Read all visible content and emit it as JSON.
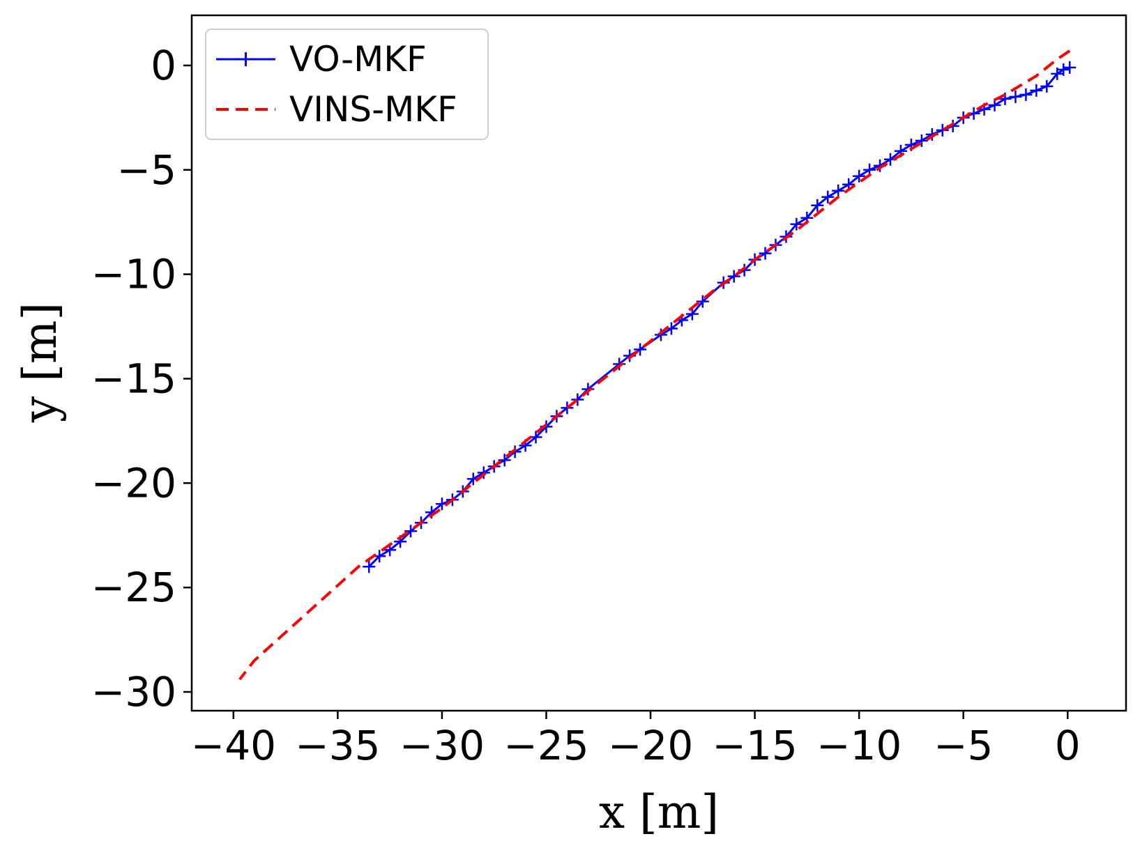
{
  "chart_data": {
    "type": "line",
    "title": "",
    "xlabel": "x [m]",
    "ylabel": "y [m]",
    "xlim": [
      -42,
      2.8
    ],
    "ylim": [
      -30.9,
      2.4
    ],
    "xticks": [
      -40,
      -35,
      -30,
      -25,
      -20,
      -15,
      -10,
      -5,
      0
    ],
    "yticks": [
      0,
      -5,
      -10,
      -15,
      -20,
      -25,
      -30
    ],
    "xtick_labels": [
      "−40",
      "−35",
      "−30",
      "−25",
      "−20",
      "−15",
      "−10",
      "−5",
      "0"
    ],
    "ytick_labels": [
      "0",
      "−5",
      "−10",
      "−15",
      "−20",
      "−25",
      "−30"
    ],
    "grid": false,
    "legend_position": "top-left",
    "series": [
      {
        "name": "VO-MKF",
        "style": "solid line with + markers",
        "color": "#0000ff",
        "x": [
          0.1,
          -0.2,
          -0.5,
          -1.0,
          -1.5,
          -2.0,
          -2.5,
          -3.0,
          -3.5,
          -4.0,
          -4.5,
          -5.0,
          -5.5,
          -6.0,
          -6.5,
          -7.0,
          -7.5,
          -8.0,
          -8.5,
          -9.0,
          -9.5,
          -10.0,
          -10.5,
          -11.0,
          -11.5,
          -12.0,
          -12.5,
          -13.0,
          -13.5,
          -14.0,
          -14.5,
          -15.0,
          -15.5,
          -16.0,
          -16.5,
          -17.5,
          -18.0,
          -18.5,
          -19.0,
          -19.5,
          -20.5,
          -21.0,
          -21.5,
          -23.0,
          -23.5,
          -24.0,
          -24.5,
          -25.0,
          -25.5,
          -26.0,
          -26.5,
          -27.0,
          -27.5,
          -28.0,
          -28.5,
          -29.0,
          -29.5,
          -30.0,
          -30.5,
          -31.0,
          -31.5,
          -32.0,
          -32.5,
          -33.0,
          -33.5
        ],
        "y": [
          -0.1,
          -0.2,
          -0.4,
          -1.0,
          -1.2,
          -1.4,
          -1.5,
          -1.6,
          -1.9,
          -2.1,
          -2.3,
          -2.5,
          -2.9,
          -3.1,
          -3.3,
          -3.6,
          -3.8,
          -4.1,
          -4.5,
          -4.8,
          -5.0,
          -5.3,
          -5.7,
          -6.0,
          -6.3,
          -6.7,
          -7.3,
          -7.6,
          -8.2,
          -8.6,
          -9.0,
          -9.3,
          -9.8,
          -10.1,
          -10.4,
          -11.3,
          -11.9,
          -12.2,
          -12.6,
          -12.9,
          -13.6,
          -13.9,
          -14.3,
          -15.5,
          -16.0,
          -16.4,
          -16.8,
          -17.3,
          -17.8,
          -18.2,
          -18.5,
          -18.9,
          -19.2,
          -19.5,
          -19.8,
          -20.4,
          -20.8,
          -21.0,
          -21.4,
          -21.9,
          -22.3,
          -22.8,
          -23.2,
          -23.5,
          -24.0
        ]
      },
      {
        "name": "VINS-MKF",
        "style": "dashed line",
        "color": "#ff0000",
        "x": [
          0.1,
          -0.5,
          -1.0,
          -1.5,
          -2.0,
          -2.5,
          -3.0,
          -4.0,
          -5.0,
          -6.0,
          -7.0,
          -8.0,
          -9.0,
          -10.0,
          -11.0,
          -12.0,
          -13.0,
          -14.0,
          -15.0,
          -16.0,
          -17.0,
          -18.0,
          -19.0,
          -20.0,
          -21.0,
          -22.0,
          -23.0,
          -24.0,
          -25.0,
          -26.0,
          -27.0,
          -28.0,
          -29.0,
          -30.0,
          -31.0,
          -32.0,
          -33.0,
          -34.0,
          -35.0,
          -36.0,
          -37.0,
          -38.0,
          -39.0,
          -39.7
        ],
        "y": [
          0.7,
          0.3,
          -0.1,
          -0.5,
          -0.8,
          -1.1,
          -1.4,
          -1.9,
          -2.5,
          -3.1,
          -3.7,
          -4.3,
          -4.9,
          -5.6,
          -6.3,
          -7.1,
          -7.9,
          -8.6,
          -9.3,
          -10.1,
          -10.8,
          -11.6,
          -12.4,
          -13.2,
          -14.0,
          -14.8,
          -15.6,
          -16.4,
          -17.2,
          -18.0,
          -18.8,
          -19.6,
          -20.4,
          -21.2,
          -21.9,
          -22.6,
          -23.3,
          -24.0,
          -24.9,
          -25.8,
          -26.7,
          -27.6,
          -28.5,
          -29.4
        ]
      }
    ]
  }
}
